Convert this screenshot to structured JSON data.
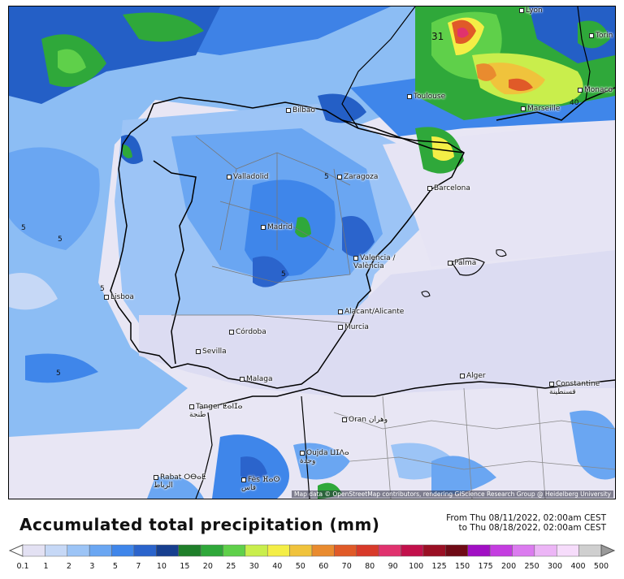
{
  "map": {
    "attribution": "Map data © OpenStreetMap contributors, rendering GIScience Research Group @ Heidelberg University",
    "cities": [
      {
        "name": "Lyon"
      },
      {
        "name": "Torin"
      },
      {
        "name": "Monaco"
      },
      {
        "name": "Toulouse"
      },
      {
        "name": "Marseille"
      },
      {
        "name": "Bilbao"
      },
      {
        "name": "Valladolid"
      },
      {
        "name": "Zaragoza"
      },
      {
        "name": "Barcelona"
      },
      {
        "name": "Madrid"
      },
      {
        "name": "Valencia / València"
      },
      {
        "name": "Palma"
      },
      {
        "name": "Lisboa"
      },
      {
        "name": "Alacant/Alicante"
      },
      {
        "name": "Murcia"
      },
      {
        "name": "Córdoba"
      },
      {
        "name": "Sevilla"
      },
      {
        "name": "Malaga"
      },
      {
        "name": "Alger"
      },
      {
        "name": "Constantine قسنطينة"
      },
      {
        "name": "Tanger ⵟⴰⵏⵊⴰ طنجة"
      },
      {
        "name": "Oran وهران"
      },
      {
        "name": "Oujda ⵡⵊⴷⴰ وجدة"
      },
      {
        "name": "Rabat ⵔⴱⴰⵟ الرباط"
      },
      {
        "name": "Fès ⴼⴰⵙ فاس"
      }
    ],
    "contour_labels": [
      "31",
      "40",
      "5",
      "5",
      "5",
      "5",
      "5",
      "5"
    ]
  },
  "legend": {
    "title": "Accumulated total precipitation (mm)",
    "period_from": "From Thu 08/11/2022, 02:00am CEST",
    "period_to": "to Thu 08/18/2022, 02:00am CEST",
    "ticks": [
      "0.1",
      "1",
      "2",
      "3",
      "5",
      "7",
      "10",
      "15",
      "20",
      "25",
      "30",
      "40",
      "50",
      "60",
      "70",
      "80",
      "90",
      "100",
      "125",
      "150",
      "175",
      "200",
      "250",
      "300",
      "400",
      "500"
    ],
    "colors": [
      "#e3e1f3",
      "#c6d8f6",
      "#9cc4f6",
      "#6aa6f2",
      "#3f86ea",
      "#2b64cc",
      "#173f8f",
      "#1f7f2a",
      "#2fa83a",
      "#5fd04a",
      "#c9ee4c",
      "#f4ee46",
      "#f0c33c",
      "#e98b2f",
      "#e05a28",
      "#d83a2a",
      "#e0326e",
      "#c2104b",
      "#9a0f24",
      "#6f0a15",
      "#a10fc4",
      "#c43de0",
      "#db7bef",
      "#ecb5f6",
      "#f6dcfb",
      "#cfcfcf"
    ]
  }
}
